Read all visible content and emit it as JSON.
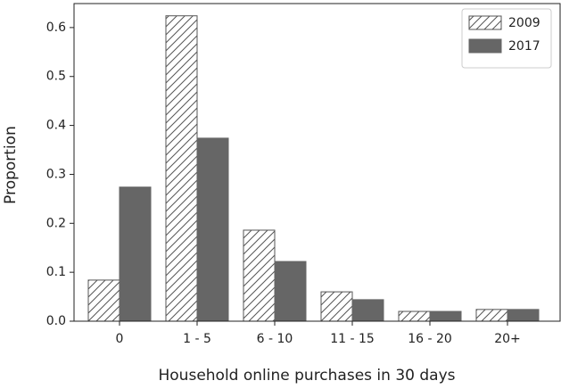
{
  "chart_data": {
    "type": "bar",
    "x_label": "Household online purchases in 30 days",
    "y_label": "Proportion",
    "categories": [
      "0",
      "1 - 5",
      "6 - 10",
      "11 - 15",
      "16 - 20",
      "20+"
    ],
    "series": [
      {
        "name": "2009",
        "color": "#ffffff",
        "hatch": "///",
        "values": [
          0.084,
          0.624,
          0.186,
          0.06,
          0.02,
          0.024
        ]
      },
      {
        "name": "2017",
        "color": "#666666",
        "values": [
          0.274,
          0.374,
          0.122,
          0.044,
          0.02,
          0.024
        ]
      }
    ],
    "ylim": [
      0,
      0.649
    ],
    "yticks": [
      {
        "value": 0,
        "label": "0.0"
      },
      0.1,
      0.2,
      0.3,
      0.4,
      0.5,
      0.6
    ],
    "legend": "upper right"
  }
}
